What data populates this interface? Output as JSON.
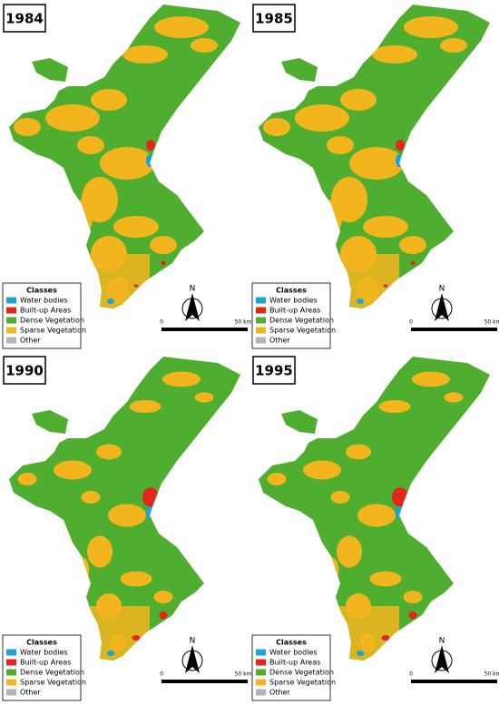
{
  "panels": [
    {
      "year": "1984",
      "north": "N",
      "scale": {
        "start": "0",
        "end": "50 km"
      },
      "legend": {
        "title": "Classes",
        "items": [
          {
            "label": "Water bodies",
            "color": "#1ba3dc"
          },
          {
            "label": "Built-up Areas",
            "color": "#e3261c"
          },
          {
            "label": "Dense Vegetation",
            "color": "#4fae2f"
          },
          {
            "label": "Sparse Vegetation",
            "color": "#f2b51e"
          },
          {
            "label": "Other",
            "color": "#b4b4b4"
          }
        ]
      }
    },
    {
      "year": "1985",
      "north": "N",
      "scale": {
        "start": "0",
        "end": "50 km"
      },
      "legend": {
        "title": "Classes",
        "items": [
          {
            "label": "Water bodies",
            "color": "#1ba3dc"
          },
          {
            "label": "Built-up Areas",
            "color": "#e3261c"
          },
          {
            "label": "Dense Vegetation",
            "color": "#4fae2f"
          },
          {
            "label": "Sparse Vegetation",
            "color": "#f2b51e"
          },
          {
            "label": "Other",
            "color": "#b4b4b4"
          }
        ]
      }
    },
    {
      "year": "1990",
      "north": "N",
      "scale": {
        "start": "0",
        "end": "50 km"
      },
      "legend": {
        "title": "Classes",
        "items": [
          {
            "label": "Water bodies",
            "color": "#1ba3dc"
          },
          {
            "label": "Built-up Areas",
            "color": "#e3261c"
          },
          {
            "label": "Dense Vegetation",
            "color": "#4fae2f"
          },
          {
            "label": "Sparse Vegetation",
            "color": "#f2b51e"
          },
          {
            "label": "Other",
            "color": "#b4b4b4"
          }
        ]
      }
    },
    {
      "year": "1995",
      "north": "N",
      "scale": {
        "start": "0",
        "end": "50 km"
      },
      "legend": {
        "title": "Classes",
        "items": [
          {
            "label": "Water bodies",
            "color": "#1ba3dc"
          },
          {
            "label": "Built-up Areas",
            "color": "#e3261c"
          },
          {
            "label": "Dense Vegetation",
            "color": "#4fae2f"
          },
          {
            "label": "Sparse Vegetation",
            "color": "#f2b51e"
          },
          {
            "label": "Other",
            "color": "#b4b4b4"
          }
        ]
      }
    }
  ]
}
